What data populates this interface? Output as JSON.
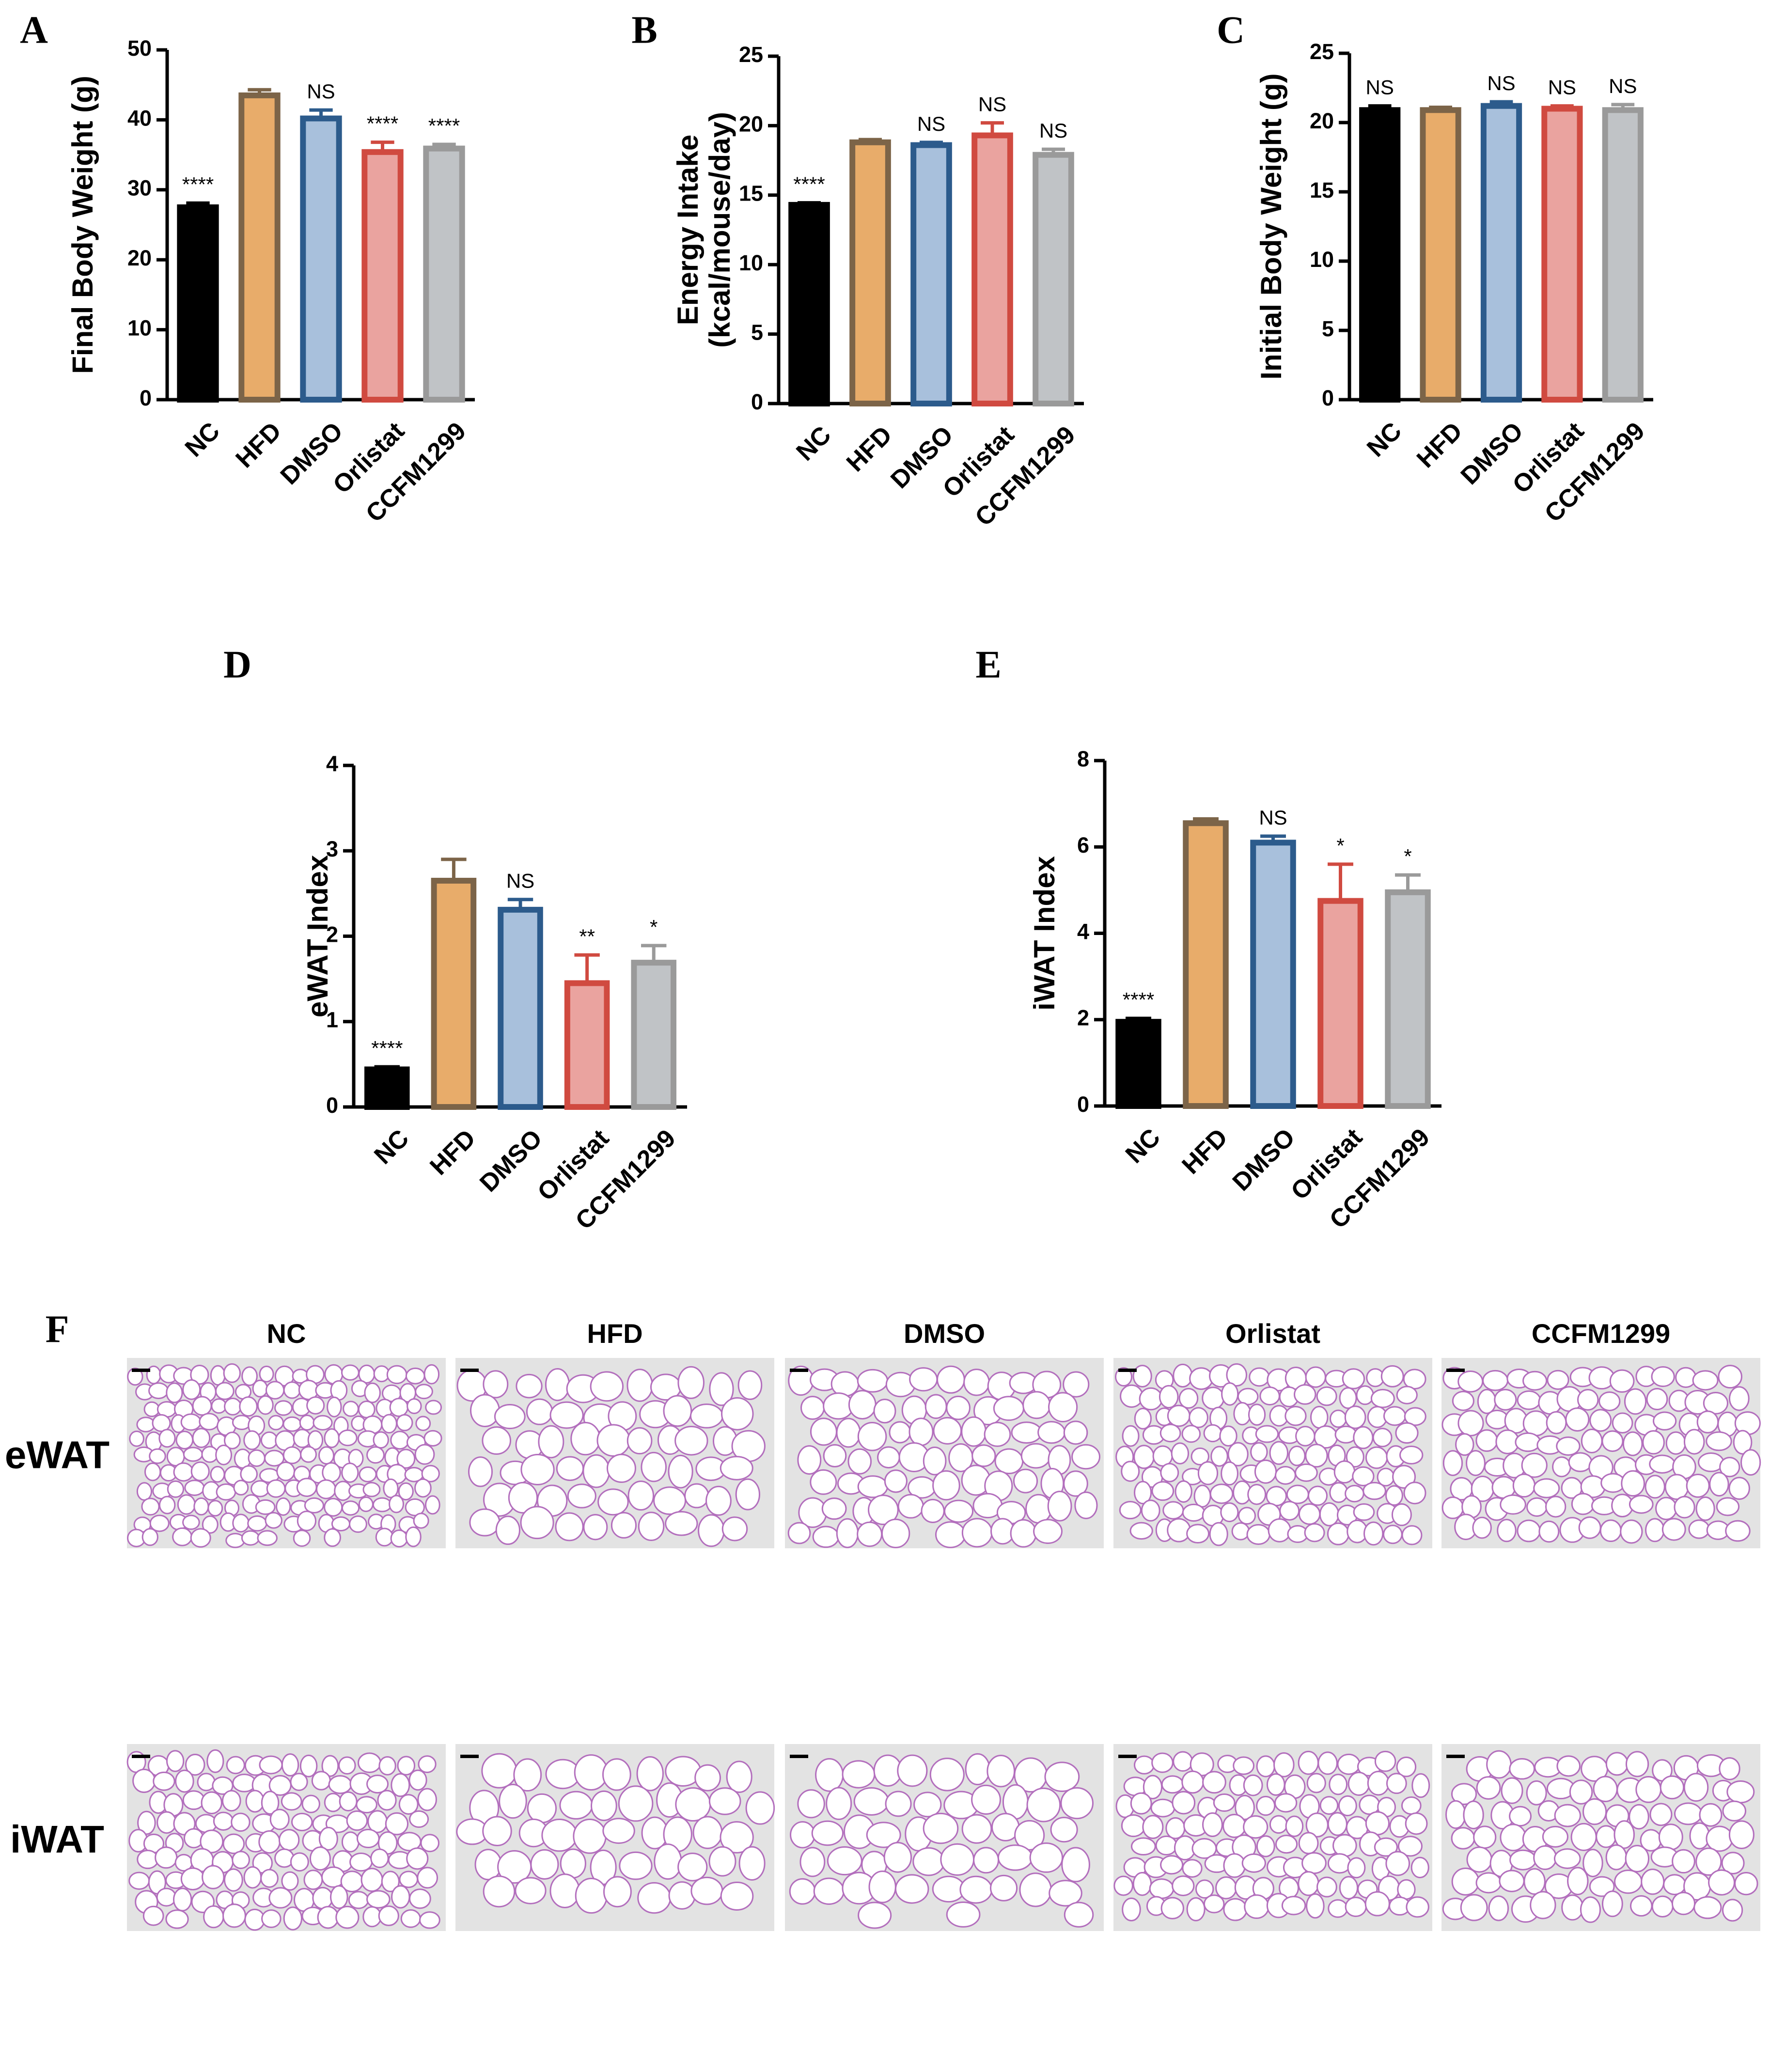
{
  "panel_labels": {
    "A": "A",
    "B": "B",
    "C": "C",
    "D": "D",
    "E": "E",
    "F": "F"
  },
  "histology": {
    "columns": [
      "NC",
      "HFD",
      "DMSO",
      "Orlistat",
      "CCFM1299"
    ],
    "rows": [
      "eWAT",
      "iWAT"
    ],
    "background": "#e3e3e3",
    "stain_color": "#b36fbd"
  },
  "chart_data": [
    {
      "id": "A",
      "type": "bar",
      "categories": [
        "NC",
        "HFD",
        "DMSO",
        "Orlistat",
        "CCFM1299"
      ],
      "values": [
        27.5,
        43.5,
        40.2,
        35.4,
        35.9
      ],
      "errors": [
        0.6,
        0.8,
        1.2,
        1.4,
        0.6
      ],
      "annotations": [
        "****",
        "",
        "NS",
        "****",
        "****"
      ],
      "ylabel": "Final Body Weight (g)",
      "ylim": [
        0,
        50
      ],
      "yticks": [
        0,
        10,
        20,
        30,
        40,
        50
      ],
      "colors": {
        "fill": [
          "#000000",
          "#e8ac6a",
          "#a8c0dc",
          "#eaa39f",
          "#c0c3c6"
        ],
        "edge": [
          "#000000",
          "#7c6448",
          "#2c5b8c",
          "#d04a40",
          "#9a9a9a"
        ]
      }
    },
    {
      "id": "B",
      "type": "bar",
      "categories": [
        "NC",
        "HFD",
        "DMSO",
        "Orlistat",
        "CCFM1299"
      ],
      "values": [
        14.3,
        18.8,
        18.6,
        19.3,
        17.9
      ],
      "errors": [
        0.15,
        0.2,
        0.2,
        0.9,
        0.4
      ],
      "annotations": [
        "****",
        "",
        "NS",
        "NS",
        "NS"
      ],
      "ylabel": [
        "Energy  Intake",
        "(kcal/mouse/day)"
      ],
      "ylim": [
        0,
        25
      ],
      "yticks": [
        0,
        5,
        10,
        15,
        20,
        25
      ],
      "colors": {
        "fill": [
          "#000000",
          "#e8ac6a",
          "#a8c0dc",
          "#eaa39f",
          "#c0c3c6"
        ],
        "edge": [
          "#000000",
          "#7c6448",
          "#2c5b8c",
          "#d04a40",
          "#9a9a9a"
        ]
      }
    },
    {
      "id": "C",
      "type": "bar",
      "categories": [
        "NC",
        "HFD",
        "DMSO",
        "Orlistat",
        "CCFM1299"
      ],
      "values": [
        20.9,
        20.9,
        21.2,
        21.0,
        20.9
      ],
      "errors": [
        0.3,
        0.2,
        0.3,
        0.2,
        0.4
      ],
      "annotations": [
        "NS",
        "",
        "NS",
        "NS",
        "NS"
      ],
      "ylabel": "Initial Body Weight (g)",
      "ylim": [
        0,
        25
      ],
      "yticks": [
        0,
        5,
        10,
        15,
        20,
        25
      ],
      "colors": {
        "fill": [
          "#000000",
          "#e8ac6a",
          "#a8c0dc",
          "#eaa39f",
          "#c0c3c6"
        ],
        "edge": [
          "#000000",
          "#7c6448",
          "#2c5b8c",
          "#d04a40",
          "#9a9a9a"
        ]
      }
    },
    {
      "id": "D",
      "type": "bar",
      "categories": [
        "NC",
        "HFD",
        "DMSO",
        "Orlistat",
        "CCFM1299"
      ],
      "values": [
        0.44,
        2.65,
        2.31,
        1.45,
        1.69
      ],
      "errors": [
        0.03,
        0.25,
        0.12,
        0.33,
        0.2
      ],
      "annotations": [
        "****",
        "",
        "NS",
        "**",
        "*"
      ],
      "ylabel": "eWAT Index",
      "ylim": [
        0,
        4
      ],
      "yticks": [
        0,
        1,
        2,
        3,
        4
      ],
      "colors": {
        "fill": [
          "#000000",
          "#e8ac6a",
          "#a8c0dc",
          "#eaa39f",
          "#c0c3c6"
        ],
        "edge": [
          "#000000",
          "#7c6448",
          "#2c5b8c",
          "#d04a40",
          "#9a9a9a"
        ]
      }
    },
    {
      "id": "E",
      "type": "bar",
      "categories": [
        "NC",
        "HFD",
        "DMSO",
        "Orlistat",
        "CCFM1299"
      ],
      "values": [
        1.95,
        6.55,
        6.1,
        4.75,
        4.95
      ],
      "errors": [
        0.08,
        0.1,
        0.15,
        0.85,
        0.4
      ],
      "annotations": [
        "****",
        "",
        "NS",
        "*",
        "*"
      ],
      "ylabel": "iWAT Index",
      "ylim": [
        0,
        8
      ],
      "yticks": [
        0,
        2,
        4,
        6,
        8
      ],
      "colors": {
        "fill": [
          "#000000",
          "#e8ac6a",
          "#a8c0dc",
          "#eaa39f",
          "#c0c3c6"
        ],
        "edge": [
          "#000000",
          "#7c6448",
          "#2c5b8c",
          "#d04a40",
          "#9a9a9a"
        ]
      }
    }
  ]
}
